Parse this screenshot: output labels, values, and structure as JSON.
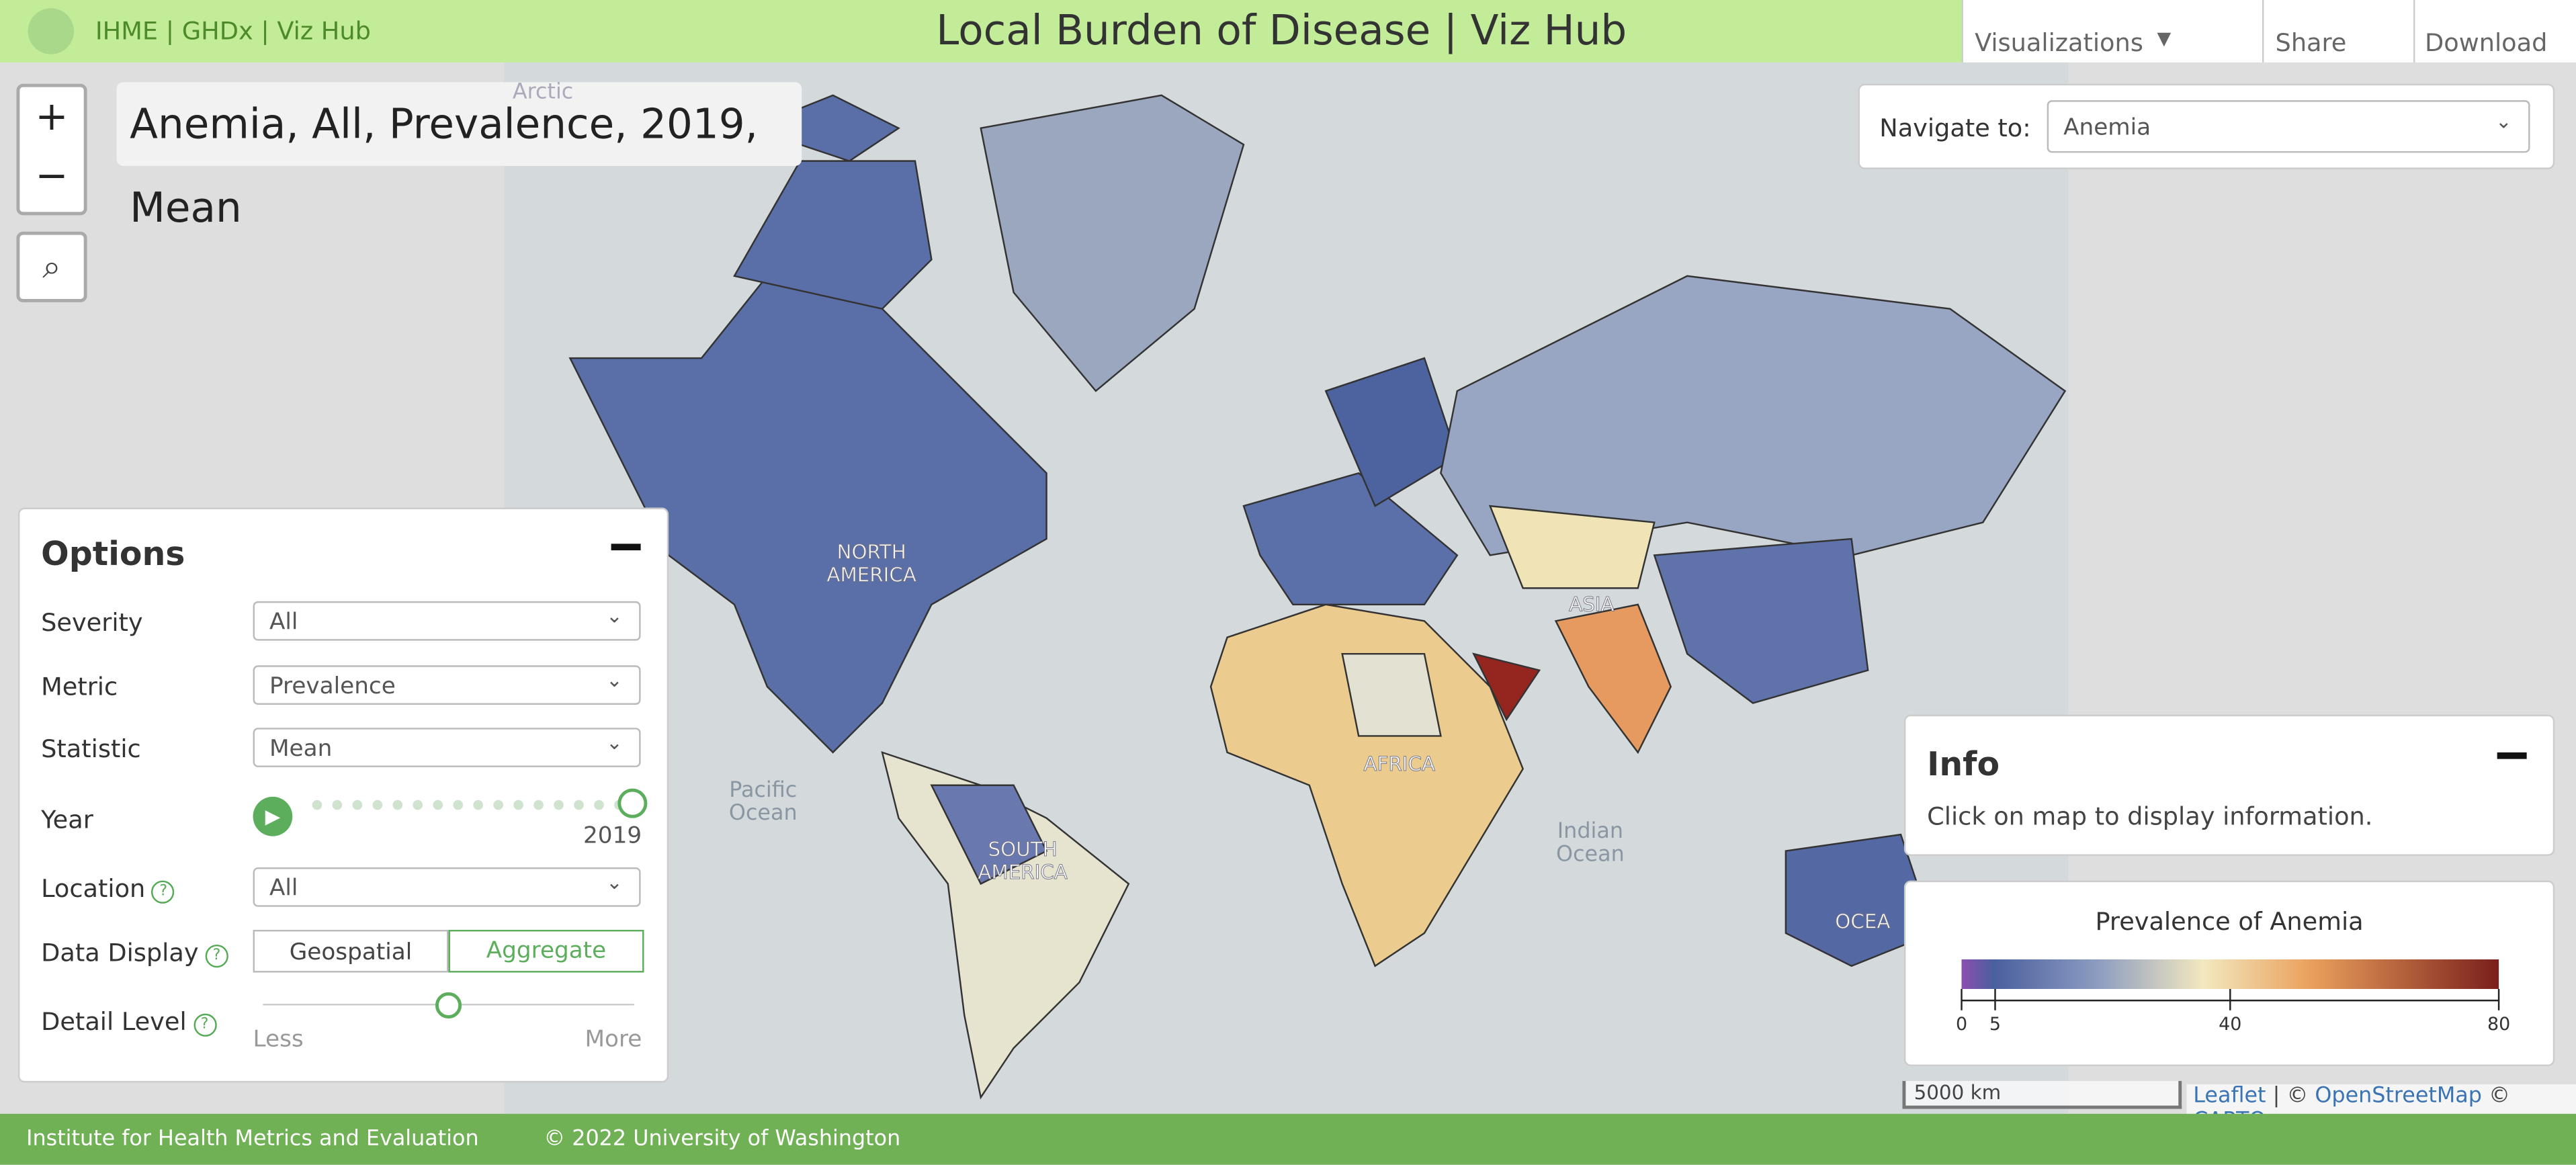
{
  "header": {
    "links": [
      "IHME",
      "GHDx",
      "Viz Hub"
    ],
    "title": "Local Burden of Disease | Viz Hub",
    "menu": [
      "Visualizations",
      "Share",
      "Download"
    ]
  },
  "map_title": "Anemia, All, Prevalence, 2019, Mean",
  "navigate": {
    "label": "Navigate to:",
    "value": "Anemia"
  },
  "options": {
    "title": "Options",
    "severity": {
      "label": "Severity",
      "value": "All"
    },
    "metric": {
      "label": "Metric",
      "value": "Prevalence"
    },
    "statistic": {
      "label": "Statistic",
      "value": "Mean"
    },
    "year": {
      "label": "Year",
      "value": "2019"
    },
    "location": {
      "label": "Location",
      "value": "All"
    },
    "data_display": {
      "label": "Data Display",
      "choices": [
        "Geospatial",
        "Aggregate"
      ]
    },
    "detail_level": {
      "label": "Detail Level",
      "min_label": "Less",
      "max_label": "More"
    }
  },
  "map_labels": [
    "NORTH AMERICA",
    "ASIA",
    "AFRICA",
    "SOUTH AMERICA",
    "OCEA",
    "Pacific Ocean",
    "Indian Ocean",
    "Arctic"
  ],
  "info": {
    "title": "Info",
    "text": "Click on map to display information."
  },
  "legend": {
    "title": "Prevalence of Anemia",
    "range": [
      0,
      80
    ],
    "ticks": [
      0,
      5,
      40,
      80
    ]
  },
  "scale": "5000 km",
  "attribution": [
    "Leaflet",
    "| ©",
    "OpenStreetMap",
    "©",
    "CARTO"
  ],
  "footer": [
    "Institute for Health Metrics and Evaluation",
    "© 2022 University of Washington"
  ]
}
